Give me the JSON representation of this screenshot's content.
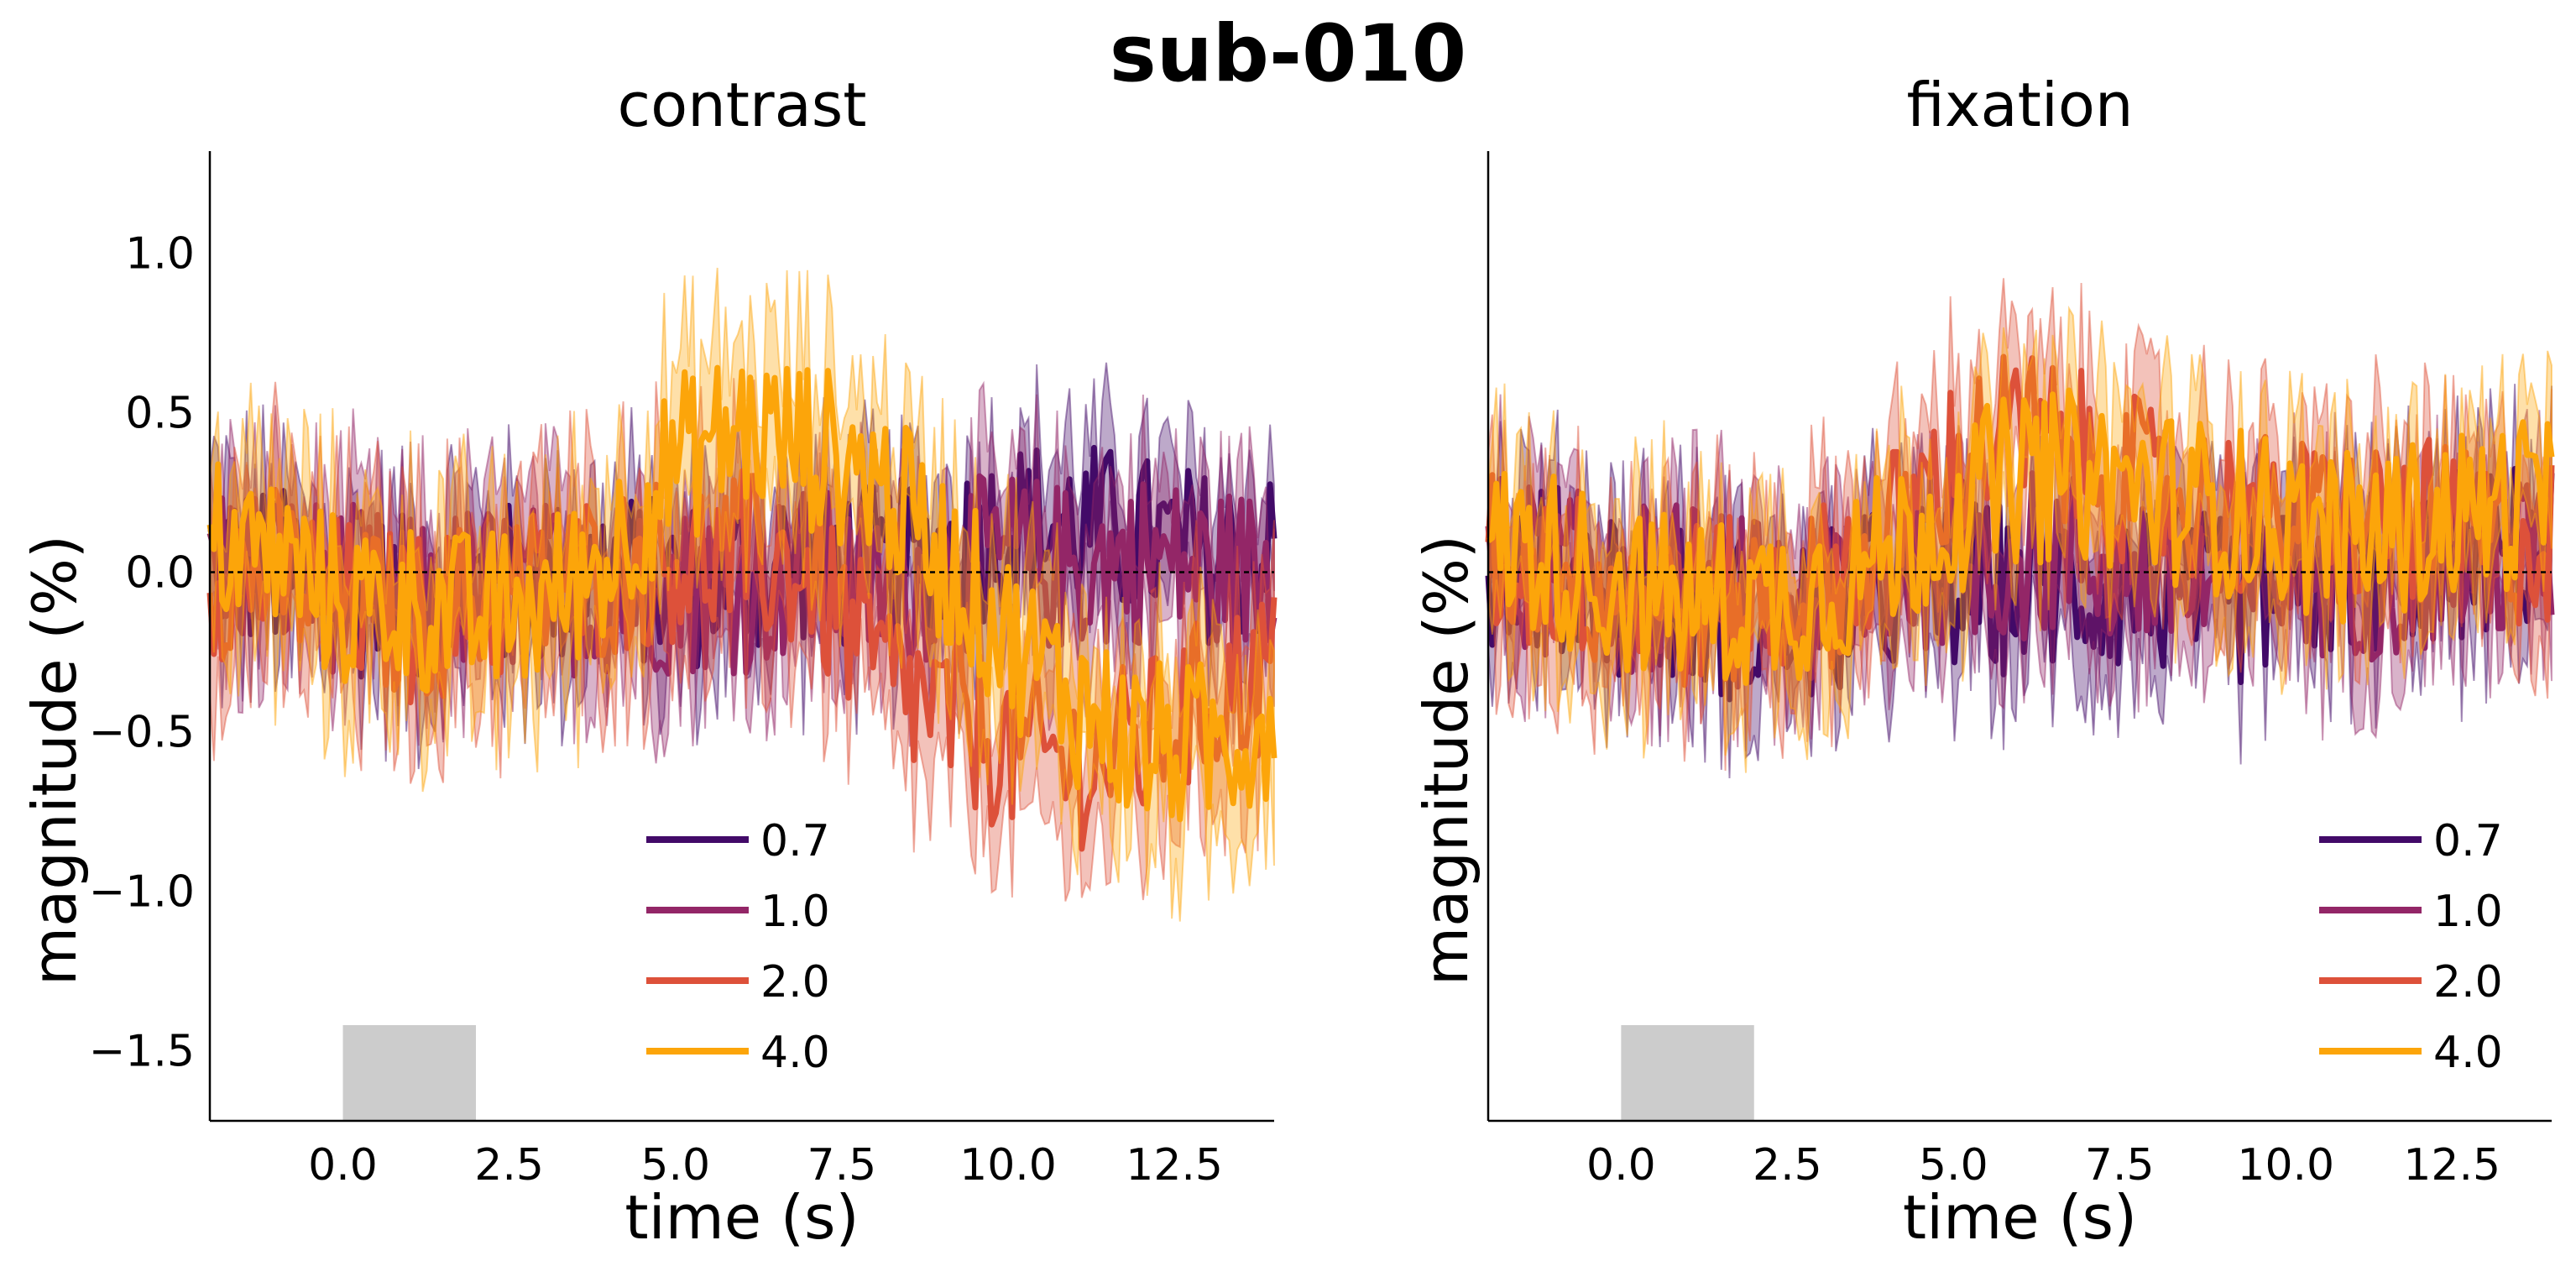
{
  "figure": {
    "title": "sub-010"
  },
  "colors": {
    "0.7": "#420a68",
    "1.0": "#932667",
    "2.0": "#dd513a",
    "4.0": "#fca50a",
    "stim": "#cccccc",
    "axis": "#000000"
  },
  "chart_data": [
    {
      "type": "line",
      "title": "contrast",
      "xlabel": "time (s)",
      "ylabel": "magnitude (%)",
      "xlim": [
        -2,
        14
      ],
      "ylim": [
        -1.72,
        1.32
      ],
      "xticks": [
        0.0,
        2.5,
        5.0,
        7.5,
        10.0,
        12.5
      ],
      "xtick_labels": [
        "0.0",
        "2.5",
        "5.0",
        "7.5",
        "10.0",
        "12.5"
      ],
      "yticks": [
        -1.5,
        -1.0,
        -0.5,
        0.0,
        0.5,
        1.0
      ],
      "ytick_labels": [
        "−1.5",
        "−1.0",
        "−0.5",
        "0.0",
        "0.5",
        "1.0"
      ],
      "show_yticks": true,
      "zero_line": true,
      "stimulus_bar": {
        "x": [
          0,
          2
        ],
        "y": [
          -1.72,
          -1.42
        ]
      },
      "legend": {
        "position": "lower-center",
        "entries": [
          "0.7",
          "1.0",
          "2.0",
          "4.0"
        ]
      },
      "x": [
        -2,
        -1,
        0,
        1,
        2,
        3,
        4,
        5,
        6,
        7,
        8,
        9,
        10,
        11,
        12,
        13,
        14
      ],
      "series": [
        {
          "name": "0.7",
          "values": [
            0.05,
            0.0,
            -0.05,
            -0.1,
            -0.05,
            -0.05,
            0.0,
            -0.05,
            0.0,
            0.05,
            0.0,
            0.05,
            0.15,
            0.15,
            0.1,
            0.05,
            0.05
          ],
          "band": 0.22
        },
        {
          "name": "1.0",
          "values": [
            0.05,
            0.0,
            -0.05,
            -0.1,
            -0.05,
            -0.05,
            -0.05,
            -0.05,
            -0.05,
            0.0,
            -0.05,
            0.0,
            0.05,
            0.0,
            0.05,
            0.0,
            0.0
          ],
          "band": 0.22
        },
        {
          "name": "2.0",
          "values": [
            0.0,
            0.0,
            -0.1,
            -0.15,
            -0.1,
            -0.05,
            0.0,
            0.05,
            0.05,
            0.0,
            -0.3,
            -0.45,
            -0.55,
            -0.6,
            -0.55,
            -0.4,
            -0.3
          ],
          "band": 0.25
        },
        {
          "name": "4.0",
          "values": [
            0.1,
            0.05,
            -0.1,
            -0.1,
            -0.15,
            -0.1,
            0.05,
            0.35,
            0.45,
            0.4,
            0.3,
            0.05,
            -0.2,
            -0.4,
            -0.55,
            -0.55,
            -0.45
          ],
          "band": 0.25
        }
      ]
    },
    {
      "type": "line",
      "title": "fixation",
      "xlabel": "time (s)",
      "ylabel": "magnitude (%)",
      "xlim": [
        -2,
        14
      ],
      "ylim": [
        -1.72,
        1.32
      ],
      "xticks": [
        0.0,
        2.5,
        5.0,
        7.5,
        10.0,
        12.5
      ],
      "xtick_labels": [
        "0.0",
        "2.5",
        "5.0",
        "7.5",
        "10.0",
        "12.5"
      ],
      "yticks": [],
      "ytick_labels": [],
      "show_yticks": false,
      "zero_line": true,
      "stimulus_bar": {
        "x": [
          0,
          2
        ],
        "y": [
          -1.72,
          -1.42
        ]
      },
      "legend": {
        "position": "lower-right",
        "entries": [
          "0.7",
          "1.0",
          "2.0",
          "4.0"
        ]
      },
      "x": [
        -2,
        -1,
        0,
        1,
        2,
        3,
        4,
        5,
        6,
        7,
        8,
        9,
        10,
        11,
        12,
        13,
        14
      ],
      "series": [
        {
          "name": "0.7",
          "values": [
            0.05,
            0.0,
            -0.05,
            -0.1,
            -0.15,
            -0.15,
            -0.05,
            -0.05,
            -0.05,
            -0.05,
            -0.05,
            -0.1,
            -0.05,
            0.0,
            0.05,
            0.05,
            0.1
          ],
          "band": 0.2
        },
        {
          "name": "1.0",
          "values": [
            0.05,
            0.0,
            -0.05,
            -0.05,
            -0.1,
            -0.1,
            0.0,
            0.05,
            0.05,
            0.05,
            0.0,
            -0.05,
            0.0,
            0.0,
            0.0,
            0.05,
            0.05
          ],
          "band": 0.2
        },
        {
          "name": "2.0",
          "values": [
            0.05,
            0.0,
            -0.05,
            -0.1,
            -0.1,
            -0.05,
            0.1,
            0.35,
            0.45,
            0.35,
            0.25,
            0.2,
            0.15,
            0.15,
            0.15,
            0.1,
            0.1
          ],
          "band": 0.22
        },
        {
          "name": "4.0",
          "values": [
            0.1,
            0.05,
            -0.05,
            -0.1,
            -0.1,
            -0.05,
            0.05,
            0.2,
            0.3,
            0.3,
            0.25,
            0.2,
            0.15,
            0.1,
            0.15,
            0.2,
            0.25
          ],
          "band": 0.22
        }
      ]
    }
  ]
}
